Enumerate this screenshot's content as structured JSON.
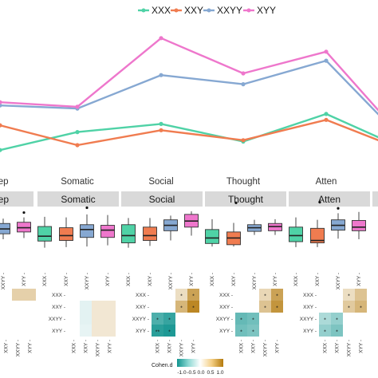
{
  "colors": {
    "XXX": "#4fd2a6",
    "XXY": "#f07c50",
    "XXYY": "#86a8d2",
    "XYY": "#ee77cc"
  },
  "chart_data": [
    {
      "type": "line",
      "title": "",
      "xlabel": "",
      "ylabel": "",
      "legend_position": "top",
      "legend": [
        "XXX",
        "XXY",
        "XXYY",
        "XYY"
      ],
      "categories": [
        "Dep",
        "Somatic",
        "Social",
        "Thought",
        "Atten",
        ""
      ],
      "category_labels": [
        "Dep",
        "Somatic",
        "Social",
        "Thought",
        "Atten"
      ],
      "series": [
        {
          "name": "XXX",
          "values": [
            -0.63,
            -0.23,
            -0.05,
            -0.44,
            0.17,
            -0.39
          ]
        },
        {
          "name": "XXY",
          "values": [
            -0.08,
            -0.52,
            -0.19,
            -0.41,
            0.04,
            -0.45
          ]
        },
        {
          "name": "XXYY",
          "values": [
            0.36,
            0.29,
            1.03,
            0.83,
            1.35,
            0.06
          ]
        },
        {
          "name": "XYY",
          "values": [
            0.43,
            0.33,
            1.85,
            1.07,
            1.55,
            0.14
          ]
        }
      ],
      "ylim": [
        -0.75,
        2.2
      ]
    },
    {
      "type": "box",
      "panels": [
        "Dep",
        "Somatic",
        "Social",
        "Thought",
        "Atten"
      ],
      "groups": [
        "XXX",
        "XXY",
        "XXYY",
        "XYY"
      ],
      "ylim": [
        0,
        10
      ],
      "boxes": [
        [
          null,
          null,
          {
            "min": 5.0,
            "q1": 5.9,
            "med": 6.7,
            "q3": 7.6,
            "max": 8.4
          },
          {
            "min": 5.2,
            "q1": 6.2,
            "med": 6.9,
            "q3": 7.8,
            "max": 8.6
          }
        ],
        [
          {
            "min": 3.6,
            "q1": 4.7,
            "med": 5.5,
            "q3": 7.1,
            "max": 8.7
          },
          {
            "min": 3.7,
            "q1": 4.8,
            "med": 5.6,
            "q3": 6.9,
            "max": 8.6
          },
          {
            "min": 3.8,
            "q1": 5.3,
            "med": 6.6,
            "q3": 7.4,
            "max": 9.1
          },
          {
            "min": 4.0,
            "q1": 5.3,
            "med": 6.5,
            "q3": 7.3,
            "max": 9.0
          }
        ],
        [
          {
            "min": 3.6,
            "q1": 4.4,
            "med": 5.6,
            "q3": 7.4,
            "max": 8.5
          },
          {
            "min": 3.9,
            "q1": 4.8,
            "med": 5.6,
            "q3": 7.0,
            "max": 8.5
          },
          {
            "min": 4.8,
            "q1": 6.4,
            "med": 7.3,
            "q3": 8.2,
            "max": 8.9
          },
          {
            "min": 5.6,
            "q1": 7.0,
            "med": 8.0,
            "q3": 9.1,
            "max": 9.6
          }
        ],
        [
          {
            "min": 3.8,
            "q1": 4.3,
            "med": 5.2,
            "q3": 6.6,
            "max": 8.3
          },
          {
            "min": 3.8,
            "q1": 4.1,
            "med": 5.2,
            "q3": 6.2,
            "max": 7.7
          },
          {
            "min": 5.7,
            "q1": 6.3,
            "med": 6.9,
            "q3": 7.4,
            "max": 8.2
          },
          {
            "min": 5.7,
            "q1": 6.4,
            "med": 7.1,
            "q3": 7.6,
            "max": 8.3
          }
        ],
        [
          {
            "min": 3.7,
            "q1": 4.6,
            "med": 5.6,
            "q3": 7.0,
            "max": 8.6
          },
          {
            "min": 3.7,
            "q1": 4.4,
            "med": 4.8,
            "q3": 6.8,
            "max": 8.2
          },
          {
            "min": 5.1,
            "q1": 6.5,
            "med": 7.3,
            "q3": 8.2,
            "max": 9.3
          },
          {
            "min": 5.0,
            "q1": 6.4,
            "med": 7.0,
            "q3": 8.1,
            "max": 9.5
          }
        ]
      ],
      "outliers": [
        [
          null,
          null,
          null,
          9.4
        ],
        [
          null,
          null,
          10.2,
          null
        ],
        [],
        [
          null,
          null,
          null,
          null
        ],
        [
          null,
          null,
          10.1,
          null
        ]
      ],
      "extra_outliers": [
        {
          "panel": 3,
          "value": 11.0
        },
        {
          "panel": 4,
          "value": 11.1
        }
      ],
      "tick_labels": [
        "XXX",
        "XXY",
        "XXYY",
        "XYY"
      ]
    },
    {
      "type": "heatmap",
      "panels": [
        "Dep",
        "Somatic",
        "Social",
        "Thought",
        "Atten"
      ],
      "rows": [
        "XXX",
        "XXY",
        "XXYY",
        "XYY"
      ],
      "cols": [
        "XXX",
        "XXY",
        "XXYY",
        "XYY"
      ],
      "legend_title": "Cohen.d",
      "legend_ticks": [
        "-1.0",
        "-0.5",
        "0.0",
        "0.5",
        "1.0"
      ],
      "range": [
        -1.0,
        1.0
      ],
      "cells": [
        [
          [
            null,
            null,
            0.35,
            0.35
          ],
          [
            null,
            null,
            null,
            null
          ],
          [
            null,
            null,
            null,
            null
          ],
          [
            null,
            null,
            null,
            null
          ]
        ],
        [
          [
            null,
            null,
            0.0,
            0.0
          ],
          [
            null,
            -0.12,
            0.18,
            0.18
          ],
          [
            null,
            -0.12,
            0.18,
            0.18
          ],
          [
            null,
            -0.1,
            0.18,
            0.18
          ]
        ],
        [
          [
            null,
            null,
            0.25,
            0.7
          ],
          [
            null,
            null,
            0.55,
            0.9
          ],
          [
            -0.75,
            -0.85,
            null,
            null
          ],
          [
            -0.9,
            -0.95,
            null,
            null
          ]
        ],
        [
          [
            null,
            null,
            0.3,
            0.7
          ],
          [
            null,
            null,
            0.45,
            0.8
          ],
          [
            -0.65,
            -0.6,
            null,
            null
          ],
          [
            -0.6,
            -0.55,
            null,
            null
          ]
        ],
        [
          [
            null,
            null,
            0.25,
            0.45
          ],
          [
            null,
            null,
            0.4,
            0.55
          ],
          [
            -0.35,
            -0.45,
            null,
            null
          ],
          [
            -0.45,
            -0.55,
            null,
            null
          ]
        ]
      ],
      "stars": [
        [
          [],
          [],
          [],
          []
        ],
        [
          [],
          [],
          [],
          []
        ],
        [
          [
            0,
            0,
            1,
            1
          ],
          [
            0,
            0,
            1,
            1
          ],
          [
            1,
            1,
            0,
            0
          ],
          [
            2,
            1,
            0,
            0
          ]
        ],
        [
          [
            0,
            0,
            1,
            1
          ],
          [
            0,
            0,
            1,
            1
          ],
          [
            1,
            1,
            0,
            0
          ],
          [
            1,
            1,
            0,
            0
          ]
        ],
        [
          [
            0,
            0,
            1,
            0
          ],
          [
            0,
            0,
            1,
            1
          ],
          [
            1,
            1,
            0,
            0
          ],
          [
            1,
            1,
            0,
            0
          ]
        ]
      ],
      "star_text": "*",
      "double_star_text": "**"
    }
  ]
}
